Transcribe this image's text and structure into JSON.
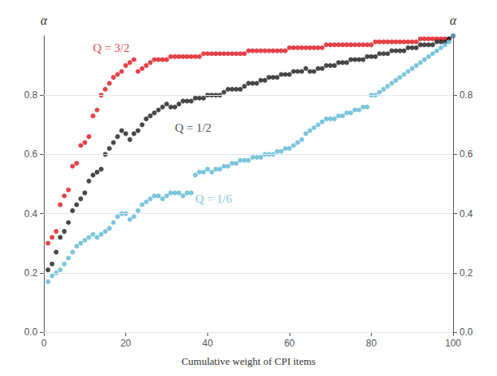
{
  "chart_data": {
    "type": "scatter",
    "title": "",
    "xlabel": "Cumulative weight of CPI items",
    "ylabel": "α",
    "y2label": "α",
    "xlim": [
      0,
      100
    ],
    "xticks": [
      0,
      20,
      40,
      60,
      80,
      100
    ],
    "ylim": [
      0.0,
      1.0
    ],
    "yticks": [
      {
        "value": 0.0,
        "label": "0.0"
      },
      0.2,
      0.4,
      0.6,
      0.8
    ],
    "y2lim": [
      0.0,
      1.0
    ],
    "y2ticks": [
      {
        "value": 0.0,
        "label": "0.0"
      },
      0.2,
      0.4,
      0.6,
      0.8
    ],
    "grid": "y",
    "series": [
      {
        "name": "Q = 3/2",
        "color": "#e0131a",
        "x": [
          1,
          2,
          3,
          4,
          5,
          6,
          7,
          8,
          9,
          10,
          11,
          12,
          13,
          14,
          15,
          16,
          17,
          18,
          19,
          20,
          21,
          22,
          23,
          24,
          25,
          26,
          27,
          28,
          29,
          30,
          31,
          32,
          33,
          34,
          35,
          36,
          37,
          38,
          39,
          40,
          41,
          42,
          43,
          44,
          45,
          46,
          47,
          48,
          49,
          50,
          51,
          52,
          53,
          54,
          55,
          56,
          57,
          58,
          59,
          60,
          61,
          62,
          63,
          64,
          65,
          66,
          67,
          68,
          69,
          70,
          71,
          72,
          73,
          74,
          75,
          76,
          77,
          78,
          79,
          80,
          81,
          82,
          83,
          84,
          85,
          86,
          87,
          88,
          89,
          90,
          91,
          92,
          93,
          94,
          95,
          96,
          97,
          98,
          99,
          100
        ],
        "values": [
          0.3,
          0.32,
          0.34,
          0.43,
          0.46,
          0.48,
          0.56,
          0.57,
          0.63,
          0.64,
          0.66,
          0.73,
          0.75,
          0.8,
          0.82,
          0.84,
          0.86,
          0.87,
          0.88,
          0.9,
          0.91,
          0.92,
          0.88,
          0.89,
          0.9,
          0.91,
          0.92,
          0.92,
          0.92,
          0.92,
          0.93,
          0.93,
          0.93,
          0.93,
          0.93,
          0.93,
          0.93,
          0.93,
          0.94,
          0.94,
          0.94,
          0.94,
          0.94,
          0.94,
          0.94,
          0.94,
          0.94,
          0.94,
          0.94,
          0.95,
          0.95,
          0.95,
          0.95,
          0.95,
          0.95,
          0.95,
          0.95,
          0.95,
          0.95,
          0.96,
          0.96,
          0.96,
          0.96,
          0.96,
          0.96,
          0.96,
          0.96,
          0.96,
          0.97,
          0.97,
          0.97,
          0.97,
          0.97,
          0.97,
          0.97,
          0.97,
          0.97,
          0.97,
          0.97,
          0.97,
          0.98,
          0.98,
          0.98,
          0.98,
          0.98,
          0.98,
          0.98,
          0.98,
          0.98,
          0.98,
          0.98,
          0.99,
          0.99,
          0.99,
          0.99,
          0.99,
          0.99,
          0.99,
          0.99,
          1.0
        ]
      },
      {
        "name": "Q = 1/2",
        "color": "#1a1a1a",
        "x": [
          1,
          2,
          3,
          4,
          5,
          6,
          7,
          8,
          9,
          10,
          11,
          12,
          13,
          14,
          15,
          16,
          17,
          18,
          19,
          20,
          21,
          22,
          23,
          24,
          25,
          26,
          27,
          28,
          29,
          30,
          31,
          32,
          33,
          34,
          35,
          36,
          37,
          38,
          39,
          40,
          41,
          42,
          43,
          44,
          45,
          46,
          47,
          48,
          49,
          50,
          51,
          52,
          53,
          54,
          55,
          56,
          57,
          58,
          59,
          60,
          61,
          62,
          63,
          64,
          65,
          66,
          67,
          68,
          69,
          70,
          71,
          72,
          73,
          74,
          75,
          76,
          77,
          78,
          79,
          80,
          81,
          82,
          83,
          84,
          85,
          86,
          87,
          88,
          89,
          90,
          91,
          92,
          93,
          94,
          95,
          96,
          97,
          98,
          99,
          100
        ],
        "values": [
          0.21,
          0.23,
          0.27,
          0.32,
          0.34,
          0.37,
          0.41,
          0.43,
          0.45,
          0.47,
          0.51,
          0.53,
          0.54,
          0.55,
          0.6,
          0.62,
          0.64,
          0.66,
          0.68,
          0.67,
          0.65,
          0.67,
          0.68,
          0.7,
          0.72,
          0.73,
          0.74,
          0.75,
          0.76,
          0.77,
          0.76,
          0.76,
          0.77,
          0.78,
          0.78,
          0.78,
          0.79,
          0.79,
          0.79,
          0.8,
          0.8,
          0.8,
          0.8,
          0.81,
          0.82,
          0.82,
          0.82,
          0.82,
          0.83,
          0.84,
          0.84,
          0.84,
          0.85,
          0.85,
          0.86,
          0.86,
          0.86,
          0.87,
          0.87,
          0.87,
          0.88,
          0.88,
          0.88,
          0.89,
          0.88,
          0.88,
          0.89,
          0.89,
          0.9,
          0.9,
          0.9,
          0.91,
          0.91,
          0.91,
          0.92,
          0.92,
          0.92,
          0.92,
          0.93,
          0.93,
          0.93,
          0.94,
          0.94,
          0.94,
          0.95,
          0.95,
          0.95,
          0.95,
          0.96,
          0.96,
          0.96,
          0.97,
          0.97,
          0.97,
          0.97,
          0.98,
          0.98,
          0.98,
          0.99,
          1.0
        ]
      },
      {
        "name": "Q = 1/6",
        "color": "#5bb8d4",
        "x": [
          1,
          2,
          3,
          4,
          5,
          6,
          7,
          8,
          9,
          10,
          11,
          12,
          13,
          14,
          15,
          16,
          17,
          18,
          19,
          20,
          21,
          22,
          23,
          24,
          25,
          26,
          27,
          28,
          29,
          30,
          31,
          32,
          33,
          34,
          35,
          36,
          37,
          38,
          39,
          40,
          41,
          42,
          43,
          44,
          45,
          46,
          47,
          48,
          49,
          50,
          51,
          52,
          53,
          54,
          55,
          56,
          57,
          58,
          59,
          60,
          61,
          62,
          63,
          64,
          65,
          66,
          67,
          68,
          69,
          70,
          71,
          72,
          73,
          74,
          75,
          76,
          77,
          78,
          79,
          80,
          81,
          82,
          83,
          84,
          85,
          86,
          87,
          88,
          89,
          90,
          91,
          92,
          93,
          94,
          95,
          96,
          97,
          98,
          99,
          100
        ],
        "values": [
          0.17,
          0.19,
          0.2,
          0.21,
          0.23,
          0.25,
          0.27,
          0.29,
          0.3,
          0.31,
          0.32,
          0.33,
          0.32,
          0.33,
          0.34,
          0.35,
          0.37,
          0.39,
          0.4,
          0.4,
          0.38,
          0.39,
          0.41,
          0.43,
          0.44,
          0.45,
          0.46,
          0.46,
          0.45,
          0.46,
          0.47,
          0.47,
          0.47,
          0.46,
          0.47,
          0.47,
          0.53,
          0.54,
          0.54,
          0.55,
          0.54,
          0.55,
          0.55,
          0.56,
          0.56,
          0.57,
          0.57,
          0.58,
          0.58,
          0.58,
          0.59,
          0.59,
          0.59,
          0.6,
          0.6,
          0.6,
          0.61,
          0.61,
          0.62,
          0.62,
          0.63,
          0.64,
          0.65,
          0.67,
          0.68,
          0.69,
          0.7,
          0.71,
          0.72,
          0.72,
          0.72,
          0.73,
          0.73,
          0.74,
          0.74,
          0.75,
          0.75,
          0.76,
          0.76,
          0.8,
          0.8,
          0.81,
          0.82,
          0.83,
          0.84,
          0.85,
          0.86,
          0.87,
          0.88,
          0.89,
          0.9,
          0.91,
          0.92,
          0.93,
          0.94,
          0.95,
          0.96,
          0.97,
          0.98,
          1.0
        ]
      }
    ],
    "annotations": [
      {
        "text": "Q = 3/2",
        "x": 12,
        "y": 0.94,
        "color": "#e0131a"
      },
      {
        "text": "Q = 1/2",
        "x": 32,
        "y": 0.67,
        "color": "#1a1a1a"
      },
      {
        "text": "Q = 1/6",
        "x": 37,
        "y": 0.43,
        "color": "#5bb8d4"
      }
    ]
  }
}
